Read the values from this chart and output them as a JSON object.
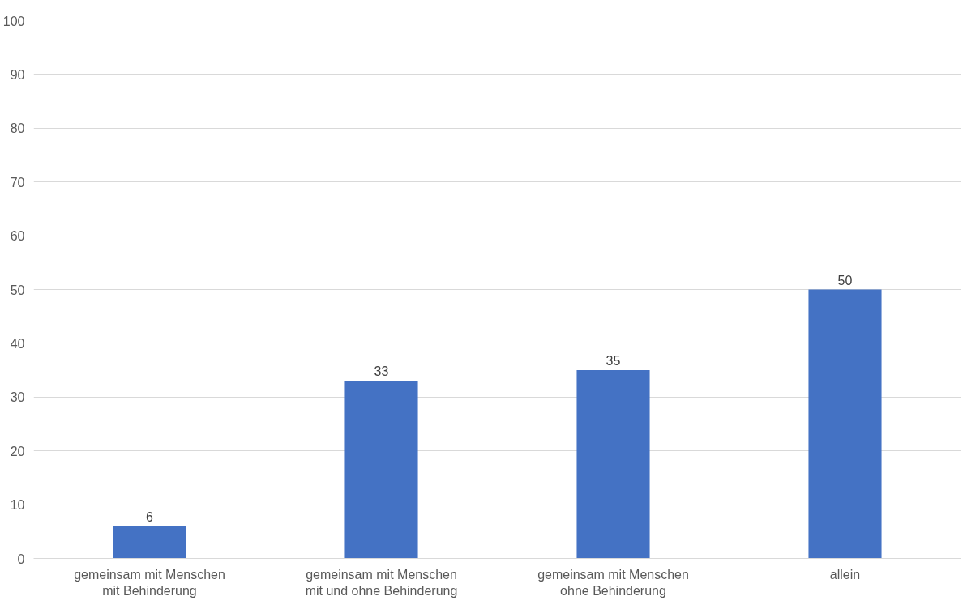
{
  "chart_data": {
    "type": "bar",
    "categories": [
      "gemeinsam mit Menschen mit Behinderung",
      "gemeinsam mit Menschen mit und ohne Behinderung",
      "gemeinsam mit Menschen ohne Behinderung",
      "allein"
    ],
    "values": [
      6,
      33,
      35,
      50
    ],
    "color": "#4472c4",
    "ylim": [
      0,
      100
    ],
    "yticks": [
      0,
      10,
      20,
      30,
      40,
      50,
      60,
      70,
      80,
      90,
      100
    ],
    "grid": "y",
    "data_labels": true
  }
}
